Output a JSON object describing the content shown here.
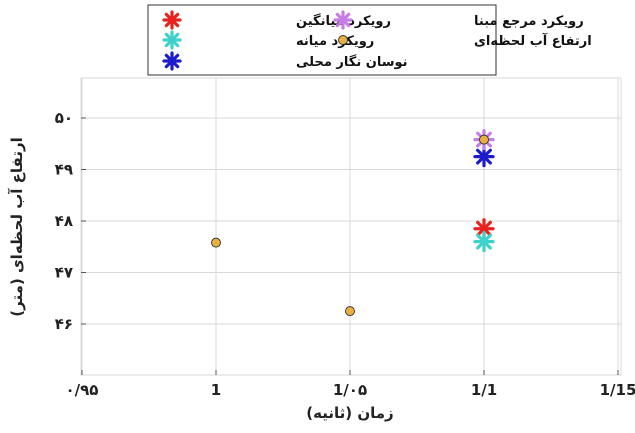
{
  "chart_data": {
    "type": "scatter",
    "xlabel": "زمان (ثانیه)",
    "ylabel": "ارتفاع آب لحظه‌ای (متر)",
    "xlim": [
      0.95,
      1.15
    ],
    "ylim": [
      45.5,
      50.5
    ],
    "x_ticks": [
      0.95,
      1,
      1.05,
      1.1,
      1.15
    ],
    "x_tick_labels": [
      "۰/۹۵",
      "1",
      "1/۰۵",
      "1/1",
      "1/15"
    ],
    "y_ticks": [
      46,
      47,
      48,
      49,
      50
    ],
    "y_tick_labels": [
      "۴۶",
      "۴۷",
      "۴۸",
      "۴۹",
      "۵۰"
    ],
    "grid": true,
    "legend_position": "top",
    "series": [
      {
        "name": "رویکرد میانگین",
        "marker": "asterisk",
        "color": "#e8231e",
        "points": [
          [
            1.1,
            47.85
          ]
        ]
      },
      {
        "name": "رویکرد مرجع مبنا",
        "marker": "asterisk",
        "color": "#c77de8",
        "points": [
          [
            1.1,
            49.58
          ]
        ]
      },
      {
        "name": "رویکرد میانه",
        "marker": "asterisk",
        "color": "#3fd1cc",
        "points": [
          [
            1.1,
            47.6
          ]
        ]
      },
      {
        "name": "ارتفاع آب لحظه‌ای",
        "marker": "circle",
        "color": "#e8b040",
        "points": [
          [
            1.0,
            47.58
          ],
          [
            1.05,
            46.25
          ],
          [
            1.1,
            49.58
          ]
        ]
      },
      {
        "name": "نوسان نگار محلی",
        "marker": "asterisk",
        "color": "#1c1ccc",
        "points": [
          [
            1.1,
            49.25
          ]
        ]
      }
    ]
  }
}
